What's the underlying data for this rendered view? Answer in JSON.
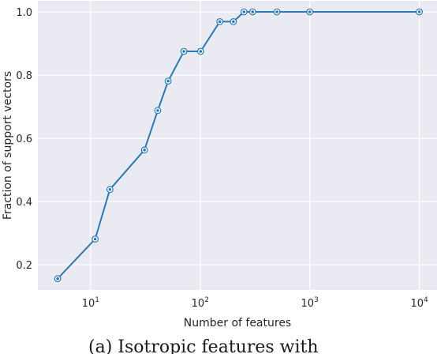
{
  "chart_data": {
    "type": "line",
    "xlabel": "Number of features",
    "ylabel": "Fraction of support vectors",
    "xscale": "log",
    "xlim": [
      3.3,
      14500
    ],
    "ylim": [
      0.12,
      1.035
    ],
    "grid": true,
    "background": "#eaeaf2",
    "line_color": "#2a7ab5",
    "x_ticks": [
      {
        "value": 10,
        "base": "10",
        "exp": "1"
      },
      {
        "value": 100,
        "base": "10",
        "exp": "2"
      },
      {
        "value": 1000,
        "base": "10",
        "exp": "3"
      },
      {
        "value": 10000,
        "base": "10",
        "exp": "4"
      }
    ],
    "y_ticks": [
      {
        "value": 0.2,
        "label": "0.2"
      },
      {
        "value": 0.4,
        "label": "0.4"
      },
      {
        "value": 0.6,
        "label": "0.6"
      },
      {
        "value": 0.8,
        "label": "0.8"
      },
      {
        "value": 1.0,
        "label": "1.0"
      }
    ],
    "series": [
      {
        "x": [
          5,
          11,
          15,
          31,
          41,
          51,
          71,
          101,
          151,
          201,
          251,
          301,
          501,
          1001,
          10001
        ],
        "y": [
          0.156,
          0.281,
          0.438,
          0.563,
          0.688,
          0.781,
          0.875,
          0.875,
          0.969,
          0.969,
          1.0,
          1.0,
          1.0,
          1.0,
          1.0
        ]
      }
    ]
  },
  "caption": "(a) Isotropic features with"
}
